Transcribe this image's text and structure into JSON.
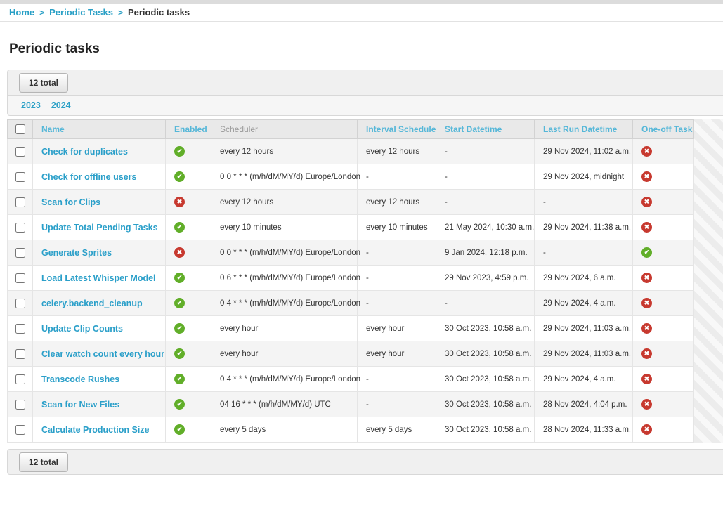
{
  "breadcrumb": {
    "separator": ">",
    "items": [
      {
        "label": "Home"
      },
      {
        "label": "Periodic Tasks"
      },
      {
        "label": "Periodic tasks"
      }
    ]
  },
  "page": {
    "title": "Periodic tasks"
  },
  "toolbar": {
    "count_label": "12 total"
  },
  "date_filter": {
    "years": [
      "2023",
      "2024"
    ]
  },
  "icons": {
    "yes_glyph": "✔",
    "no_glyph": "✖"
  },
  "colors": {
    "link_teal": "#2a9fc9",
    "header_link_teal": "#55b7d8",
    "enabled_true_green": "#61ae29",
    "enabled_false_red": "#c7392f"
  },
  "table": {
    "columns": [
      {
        "label": "Name",
        "sortable": true
      },
      {
        "label": "Enabled",
        "sortable": true
      },
      {
        "label": "Scheduler",
        "sortable": false
      },
      {
        "label": "Interval Schedule",
        "sortable": true
      },
      {
        "label": "Start Datetime",
        "sortable": true
      },
      {
        "label": "Last Run Datetime",
        "sortable": true
      },
      {
        "label": "One-off Task",
        "sortable": true
      }
    ],
    "rows": [
      {
        "name": "Check for duplicates",
        "enabled": true,
        "scheduler": "every 12 hours",
        "interval": "every 12 hours",
        "start": "-",
        "last_run": "29 Nov 2024, 11:02 a.m.",
        "one_off": false
      },
      {
        "name": "Check for offline users",
        "enabled": true,
        "scheduler": "0 0 * * * (m/h/dM/MY/d) Europe/London",
        "interval": "-",
        "start": "-",
        "last_run": "29 Nov 2024, midnight",
        "one_off": false
      },
      {
        "name": "Scan for Clips",
        "enabled": false,
        "scheduler": "every 12 hours",
        "interval": "every 12 hours",
        "start": "-",
        "last_run": "-",
        "one_off": false
      },
      {
        "name": "Update Total Pending Tasks",
        "enabled": true,
        "scheduler": "every 10 minutes",
        "interval": "every 10 minutes",
        "start": "21 May 2024, 10:30 a.m.",
        "last_run": "29 Nov 2024, 11:38 a.m.",
        "one_off": false
      },
      {
        "name": "Generate Sprites",
        "enabled": false,
        "scheduler": "0 0 * * * (m/h/dM/MY/d) Europe/London",
        "interval": "-",
        "start": "9 Jan 2024, 12:18 p.m.",
        "last_run": "-",
        "one_off": true
      },
      {
        "name": "Load Latest Whisper Model",
        "enabled": true,
        "scheduler": "0 6 * * * (m/h/dM/MY/d) Europe/London",
        "interval": "-",
        "start": "29 Nov 2023, 4:59 p.m.",
        "last_run": "29 Nov 2024, 6 a.m.",
        "one_off": false
      },
      {
        "name": "celery.backend_cleanup",
        "enabled": true,
        "scheduler": "0 4 * * * (m/h/dM/MY/d) Europe/London",
        "interval": "-",
        "start": "-",
        "last_run": "29 Nov 2024, 4 a.m.",
        "one_off": false
      },
      {
        "name": "Update Clip Counts",
        "enabled": true,
        "scheduler": "every hour",
        "interval": "every hour",
        "start": "30 Oct 2023, 10:58 a.m.",
        "last_run": "29 Nov 2024, 11:03 a.m.",
        "one_off": false
      },
      {
        "name": "Clear watch count every hour",
        "enabled": true,
        "scheduler": "every hour",
        "interval": "every hour",
        "start": "30 Oct 2023, 10:58 a.m.",
        "last_run": "29 Nov 2024, 11:03 a.m.",
        "one_off": false
      },
      {
        "name": "Transcode Rushes",
        "enabled": true,
        "scheduler": "0 4 * * * (m/h/dM/MY/d) Europe/London",
        "interval": "-",
        "start": "30 Oct 2023, 10:58 a.m.",
        "last_run": "29 Nov 2024, 4 a.m.",
        "one_off": false
      },
      {
        "name": "Scan for New Files",
        "enabled": true,
        "scheduler": "04 16 * * * (m/h/dM/MY/d) UTC",
        "interval": "-",
        "start": "30 Oct 2023, 10:58 a.m.",
        "last_run": "28 Nov 2024, 4:04 p.m.",
        "one_off": false
      },
      {
        "name": "Calculate Production Size",
        "enabled": true,
        "scheduler": "every 5 days",
        "interval": "every 5 days",
        "start": "30 Oct 2023, 10:58 a.m.",
        "last_run": "28 Nov 2024, 11:33 a.m.",
        "one_off": false
      }
    ]
  }
}
